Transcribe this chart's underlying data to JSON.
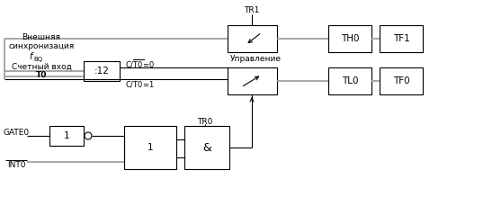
{
  "bg_color": "#ffffff",
  "line_color": "#000000",
  "gray_line_color": "#999999",
  "fig_width": 5.57,
  "fig_height": 2.29,
  "dpi": 100,
  "labels": {
    "ext_sync_line1": "Внешняя",
    "ext_sync_line2": "синхронизация",
    "f_italic": "f",
    "bq_sub": "ВQ",
    "count_input": "Счетный вход",
    "T0_bold": "T0",
    "GATE0": "GATE0",
    "INT0": "INT0",
    "div12": ":12",
    "TR0": "TR0",
    "TR1": "TR1",
    "AND": "&",
    "one1": "1",
    "one2": "1",
    "TH0": "TH0",
    "TF1": "TF1",
    "TL0": "TL0",
    "TF0": "TF0",
    "control": "Управление"
  }
}
